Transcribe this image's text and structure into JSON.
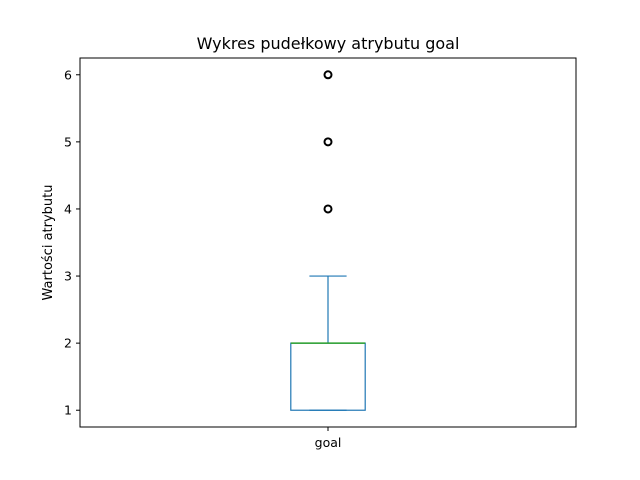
{
  "chart_data": {
    "type": "box",
    "title": "Wykres pudełkowy atrybutu goal",
    "xlabel": "",
    "ylabel": "Wartości atrybutu",
    "categories": [
      "goal"
    ],
    "ylim": [
      0.75,
      6.25
    ],
    "yticks": [
      1,
      2,
      3,
      4,
      5,
      6
    ],
    "grid": false,
    "boxes": [
      {
        "category": "goal",
        "whisker_low": 1,
        "q1": 1,
        "median": 2,
        "q3": 2,
        "whisker_high": 3,
        "outliers": [
          4,
          5,
          6
        ]
      }
    ],
    "colors": {
      "box": "#1f77b4",
      "median": "#2ca02c",
      "outlier": "#000000"
    }
  }
}
